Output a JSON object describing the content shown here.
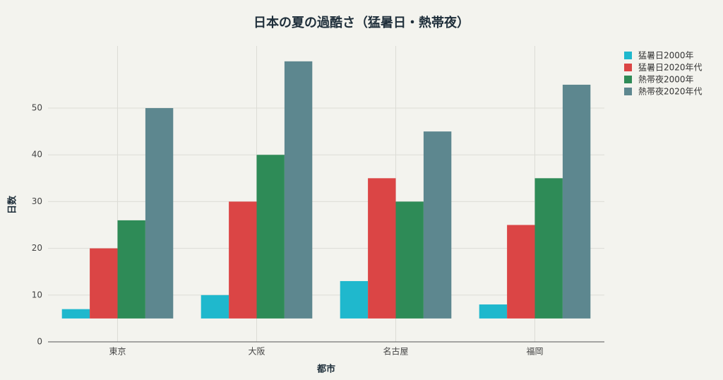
{
  "chart_data": {
    "type": "bar",
    "title": "日本の夏の過酷さ（猛暑日・熱帯夜）",
    "xlabel": "都市",
    "ylabel": "日数",
    "categories": [
      "東京",
      "大阪",
      "名古屋",
      "福岡"
    ],
    "series": [
      {
        "name": "猛暑日2000年",
        "color": "#1fb8cd",
        "values": [
          7,
          10,
          13,
          8
        ]
      },
      {
        "name": "猛暑日2020年代",
        "color": "#db4545",
        "values": [
          20,
          30,
          35,
          25
        ]
      },
      {
        "name": "熱帯夜2000年",
        "color": "#2e8b57",
        "values": [
          26,
          40,
          30,
          35
        ]
      },
      {
        "name": "熱帯夜2020年代",
        "color": "#5d878f",
        "values": [
          50,
          60,
          45,
          55
        ]
      }
    ],
    "base": 5,
    "ylim": [
      0,
      63.3
    ],
    "yticks": [
      0,
      10,
      20,
      30,
      40,
      50
    ],
    "grid": true,
    "legend": "top-right"
  }
}
